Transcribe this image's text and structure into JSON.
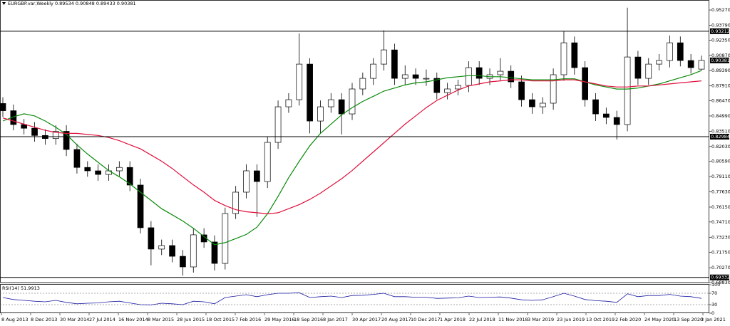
{
  "chart_data": {
    "type": "candlestick",
    "title": "EURGBP.var,Weekly  0.89534 0.90848 0.89433 0.90381",
    "open": [
      0.862,
      0.855,
      0.8416,
      0.838,
      0.831,
      0.828,
      0.835,
      0.8174,
      0.8,
      0.7967,
      0.7932,
      0.7967,
      0.8,
      0.7829,
      0.7415,
      0.7208,
      0.7242,
      0.7138,
      0.7035,
      0.7346,
      0.7277,
      0.7069,
      0.7553,
      0.776,
      0.7967,
      0.7863,
      0.8243,
      0.8588,
      0.8657,
      0.9002,
      0.845,
      0.8588,
      0.8657,
      0.8519,
      0.8761,
      0.8864,
      0.9002,
      0.914,
      0.8864,
      0.8899,
      0.8864,
      0.8864,
      0.8726,
      0.8761,
      0.8795,
      0.8968,
      0.8864,
      0.8899,
      0.8933,
      0.883,
      0.8657,
      0.8588,
      0.8623,
      0.8899,
      0.9209,
      0.8968,
      0.8657,
      0.8519,
      0.8485,
      0.8416,
      0.9071,
      0.8864,
      0.9002,
      0.9037,
      0.9209,
      0.9037,
      0.89534
    ],
    "high": [
      0.868,
      0.861,
      0.847,
      0.844,
      0.837,
      0.841,
      0.841,
      0.823,
      0.806,
      0.803,
      0.803,
      0.806,
      0.806,
      0.789,
      0.748,
      0.73,
      0.73,
      0.72,
      0.741,
      0.741,
      0.734,
      0.761,
      0.782,
      0.803,
      0.803,
      0.83,
      0.865,
      0.872,
      0.93,
      0.906,
      0.865,
      0.872,
      0.872,
      0.882,
      0.892,
      0.906,
      0.933,
      0.92,
      0.899,
      0.896,
      0.895,
      0.892,
      0.882,
      0.885,
      0.903,
      0.903,
      0.896,
      0.906,
      0.899,
      0.889,
      0.872,
      0.868,
      0.896,
      0.932,
      0.927,
      0.903,
      0.872,
      0.858,
      0.855,
      0.955,
      0.913,
      0.906,
      0.91,
      0.928,
      0.927,
      0.91,
      0.90848
    ],
    "low": [
      0.849,
      0.836,
      0.832,
      0.825,
      0.822,
      0.822,
      0.811,
      0.794,
      0.791,
      0.787,
      0.787,
      0.791,
      0.777,
      0.736,
      0.705,
      0.715,
      0.708,
      0.695,
      0.698,
      0.722,
      0.7,
      0.701,
      0.75,
      0.77,
      0.752,
      0.78,
      0.818,
      0.853,
      0.86,
      0.833,
      0.833,
      0.853,
      0.832,
      0.846,
      0.87,
      0.88,
      0.894,
      0.88,
      0.88,
      0.88,
      0.879,
      0.866,
      0.866,
      0.87,
      0.873,
      0.88,
      0.88,
      0.884,
      0.877,
      0.859,
      0.852,
      0.852,
      0.856,
      0.884,
      0.89,
      0.859,
      0.845,
      0.842,
      0.827,
      0.835,
      0.88,
      0.88,
      0.894,
      0.897,
      0.898,
      0.891,
      0.89433
    ],
    "close": [
      0.855,
      0.8416,
      0.838,
      0.831,
      0.828,
      0.835,
      0.8174,
      0.8,
      0.7967,
      0.7932,
      0.7967,
      0.8,
      0.7829,
      0.7415,
      0.7208,
      0.7242,
      0.7138,
      0.7035,
      0.7346,
      0.7277,
      0.7069,
      0.7553,
      0.776,
      0.7967,
      0.7863,
      0.8243,
      0.8588,
      0.8657,
      0.9002,
      0.845,
      0.8588,
      0.8657,
      0.8519,
      0.8761,
      0.8864,
      0.9002,
      0.914,
      0.8864,
      0.8899,
      0.8864,
      0.8864,
      0.8726,
      0.8761,
      0.8795,
      0.8968,
      0.8864,
      0.8899,
      0.8933,
      0.883,
      0.8657,
      0.8588,
      0.8623,
      0.8899,
      0.9209,
      0.8968,
      0.8657,
      0.8519,
      0.8485,
      0.8416,
      0.9071,
      0.8864,
      0.9002,
      0.9037,
      0.9209,
      0.9037,
      0.8968,
      0.90381
    ],
    "up_color": "#ffffff",
    "down_color": "#000000",
    "series": [
      {
        "color": "#0a8a0a",
        "values": [
          0.845,
          0.849,
          0.852,
          0.85,
          0.845,
          0.839,
          0.832,
          0.822,
          0.813,
          0.805,
          0.797,
          0.791,
          0.784,
          0.776,
          0.768,
          0.76,
          0.754,
          0.748,
          0.741,
          0.733,
          0.725,
          0.727,
          0.731,
          0.735,
          0.742,
          0.755,
          0.772,
          0.79,
          0.806,
          0.821,
          0.833,
          0.842,
          0.851,
          0.858,
          0.864,
          0.869,
          0.874,
          0.877,
          0.88,
          0.882,
          0.883,
          0.885,
          0.887,
          0.888,
          0.889,
          0.889,
          0.888,
          0.888,
          0.887,
          0.886,
          0.885,
          0.885,
          0.885,
          0.886,
          0.886,
          0.883,
          0.88,
          0.878,
          0.876,
          0.876,
          0.877,
          0.879,
          0.881,
          0.884,
          0.887,
          0.89,
          0.894
        ]
      },
      {
        "color": "#e0103c",
        "values": [
          0.848,
          0.845,
          0.842,
          0.839,
          0.836,
          0.834,
          0.833,
          0.833,
          0.832,
          0.831,
          0.829,
          0.826,
          0.822,
          0.818,
          0.812,
          0.806,
          0.799,
          0.791,
          0.783,
          0.776,
          0.768,
          0.763,
          0.759,
          0.757,
          0.756,
          0.755,
          0.756,
          0.76,
          0.764,
          0.769,
          0.775,
          0.782,
          0.789,
          0.797,
          0.806,
          0.815,
          0.824,
          0.833,
          0.842,
          0.85,
          0.858,
          0.865,
          0.87,
          0.875,
          0.879,
          0.881,
          0.883,
          0.884,
          0.885,
          0.885,
          0.884,
          0.884,
          0.884,
          0.885,
          0.885,
          0.883,
          0.881,
          0.879,
          0.878,
          0.878,
          0.879,
          0.879,
          0.88,
          0.881,
          0.882,
          0.883,
          0.884
        ]
      }
    ],
    "ylim": [
      0.6883,
      0.9624
    ],
    "yticks": [
      {
        "value": 0.9527,
        "label": "0.95270"
      },
      {
        "value": 0.9379,
        "label": "0.93790"
      },
      {
        "value": 0.9235,
        "label": "0.92350"
      },
      {
        "value": 0.9087,
        "label": "0.90870"
      },
      {
        "value": 0.8939,
        "label": "0.89390"
      },
      {
        "value": 0.8791,
        "label": "0.87910"
      },
      {
        "value": 0.8647,
        "label": "0.86470"
      },
      {
        "value": 0.8499,
        "label": "0.84990"
      },
      {
        "value": 0.8351,
        "label": "0.83510"
      },
      {
        "value": 0.8203,
        "label": "0.82030"
      },
      {
        "value": 0.8059,
        "label": "0.80590"
      },
      {
        "value": 0.7911,
        "label": "0.79110"
      },
      {
        "value": 0.7763,
        "label": "0.77630"
      },
      {
        "value": 0.7615,
        "label": "0.76150"
      },
      {
        "value": 0.7471,
        "label": "0.74710"
      },
      {
        "value": 0.7323,
        "label": "0.73230"
      },
      {
        "value": 0.7175,
        "label": "0.71750"
      },
      {
        "value": 0.7027,
        "label": "0.70270"
      },
      {
        "value": 0.6883,
        "label": "0.68830"
      }
    ],
    "levels": [
      {
        "value": 0.93212,
        "label": "0.93212"
      },
      {
        "value": 0.82984,
        "label": "0.82984"
      },
      {
        "value": 0.69332,
        "label": "0.69332"
      }
    ],
    "current_price": {
      "value": 0.90381,
      "label": "0.90381"
    },
    "x_labels": [
      "8 Aug 2013",
      "8 Dec 2013",
      "30 Mar 2014",
      "27 Jul 2014",
      "16 Nov 2014",
      "8 Mar 2015",
      "28 Jun 2015",
      "18 Oct 2015",
      "7 Feb 2016",
      "29 May 2016",
      "18 Sep 2016",
      "8 Jan 2017",
      "30 Apr 2017",
      "20 Aug 2017",
      "10 Dec 2017",
      "1 Apr 2018",
      "22 Jul 2018",
      "11 Nov 2018",
      "3 Mar 2019",
      "23 Jun 2019",
      "13 Oct 2019",
      "2 Feb 2020",
      "24 May 2020",
      "13 Sep 2020",
      "3 Jan 2021"
    ],
    "rsi": {
      "label": "RSI(14) 51.9913",
      "color": "#1a1aa0",
      "values": [
        55,
        48,
        45,
        42,
        40,
        45,
        38,
        33,
        35,
        36,
        40,
        42,
        36,
        30,
        29,
        35,
        33,
        30,
        42,
        40,
        33,
        55,
        60,
        65,
        58,
        65,
        70,
        70,
        72,
        55,
        58,
        60,
        55,
        62,
        63,
        66,
        70,
        58,
        58,
        56,
        56,
        52,
        53,
        54,
        60,
        55,
        56,
        57,
        53,
        47,
        45,
        47,
        58,
        70,
        60,
        48,
        44,
        42,
        38,
        68,
        58,
        62,
        62,
        66,
        60,
        58,
        51.9913
      ],
      "ylim": [
        0,
        100
      ],
      "yticks": [
        0,
        30,
        70,
        100
      ],
      "levels": [
        30,
        70
      ]
    }
  }
}
